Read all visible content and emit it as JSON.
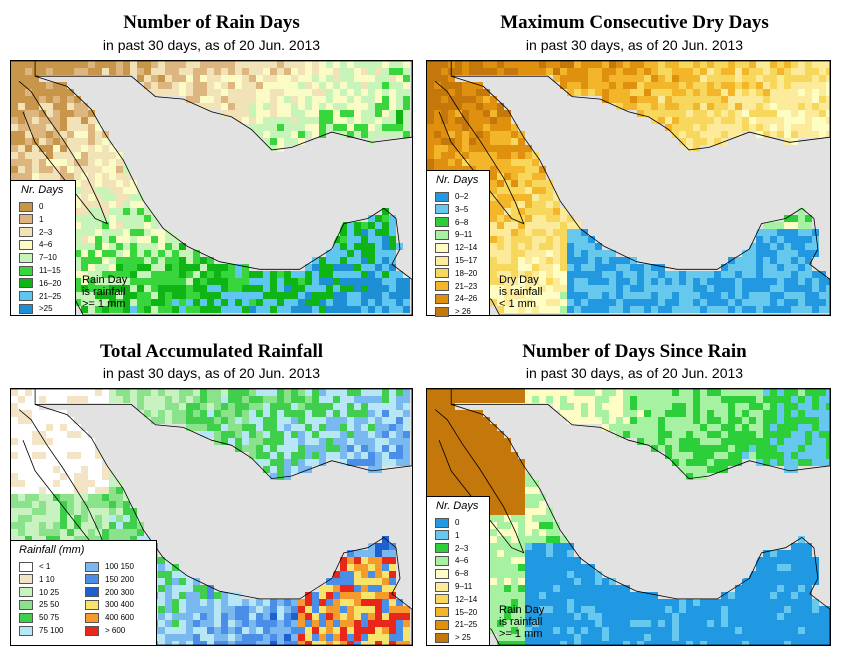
{
  "panels": [
    {
      "title": "Number of Rain Days",
      "subtitle": "in past 30 days, as of  20 Jun. 2013",
      "legend_title": "Nr. Days",
      "legend": [
        {
          "label": "0",
          "color": "#c8964b"
        },
        {
          "label": "1",
          "color": "#dcb57f"
        },
        {
          "label": "2–3",
          "color": "#f1e2b7"
        },
        {
          "label": "4–6",
          "color": "#fbfbc5"
        },
        {
          "label": "7–10",
          "color": "#c6f4b9"
        },
        {
          "label": "11–15",
          "color": "#39d53d"
        },
        {
          "label": "16–20",
          "color": "#0fb514"
        },
        {
          "label": "21–25",
          "color": "#5fc7ef"
        },
        {
          "label": ">25",
          "color": "#1e8fd4"
        }
      ],
      "note": [
        "Rain Day",
        "is rainfall",
        ">= 1 mm"
      ]
    },
    {
      "title": "Maximum Consecutive Dry Days",
      "subtitle": "in past 30 days, as of  20 Jun. 2013",
      "legend_title": "Nr. Days",
      "legend": [
        {
          "label": "0–2",
          "color": "#2298e0"
        },
        {
          "label": "3–5",
          "color": "#67c8ee"
        },
        {
          "label": "6–8",
          "color": "#2ccf3a"
        },
        {
          "label": "9–11",
          "color": "#a6f2a2"
        },
        {
          "label": "12–14",
          "color": "#fdfdc4"
        },
        {
          "label": "15–17",
          "color": "#fbeb9a"
        },
        {
          "label": "18–20",
          "color": "#f8d85c"
        },
        {
          "label": "21–23",
          "color": "#f3b62a"
        },
        {
          "label": "24–26",
          "color": "#e0900f"
        },
        {
          "label": "> 26",
          "color": "#c4770a"
        }
      ],
      "note": [
        "Dry Day",
        "is rainfall",
        "< 1 mm"
      ]
    },
    {
      "title": "Total Accumulated Rainfall",
      "subtitle": "in past 30 days, as of  20 Jun. 2013",
      "legend_title": "Rainfall (mm)",
      "legend": [
        {
          "label": "< 1",
          "color": "#ffffff"
        },
        {
          "label": "1   10",
          "color": "#f4e4c6"
        },
        {
          "label": "10   25",
          "color": "#c9f2c1"
        },
        {
          "label": "25   50",
          "color": "#8ae28a"
        },
        {
          "label": "50   75",
          "color": "#3fcf4c"
        },
        {
          "label": "75   100",
          "color": "#b7e6f4"
        },
        {
          "label": "100   150",
          "color": "#7ab8f0"
        },
        {
          "label": "150   200",
          "color": "#4b8ee8"
        },
        {
          "label": "200   300",
          "color": "#1f60d0"
        },
        {
          "label": "300   400",
          "color": "#f7e46a"
        },
        {
          "label": "400   600",
          "color": "#f59a2c"
        },
        {
          "label": "> 600",
          "color": "#e8261a"
        }
      ],
      "note": []
    },
    {
      "title": "Number of Days Since Rain",
      "subtitle": "in past 30 days, as of  20 Jun. 2013",
      "legend_title": "Nr. Days",
      "legend": [
        {
          "label": "0",
          "color": "#2198e2"
        },
        {
          "label": "1",
          "color": "#66c8ee"
        },
        {
          "label": "2–3",
          "color": "#2ccf3a"
        },
        {
          "label": "4–6",
          "color": "#a6f2a2"
        },
        {
          "label": "6–8",
          "color": "#fdfdc4"
        },
        {
          "label": "9–11",
          "color": "#fbeb9a"
        },
        {
          "label": "12–14",
          "color": "#f8d85c"
        },
        {
          "label": "15–20",
          "color": "#f3b62a"
        },
        {
          "label": "21–25",
          "color": "#e0900f"
        },
        {
          "label": "> 25",
          "color": "#c4770a"
        }
      ],
      "note": [
        "Rain Day",
        "is rainfall",
        ">= 1 mm"
      ]
    }
  ],
  "colors": {
    "ocean": "#e2e2e2",
    "border_line": "#000000"
  }
}
